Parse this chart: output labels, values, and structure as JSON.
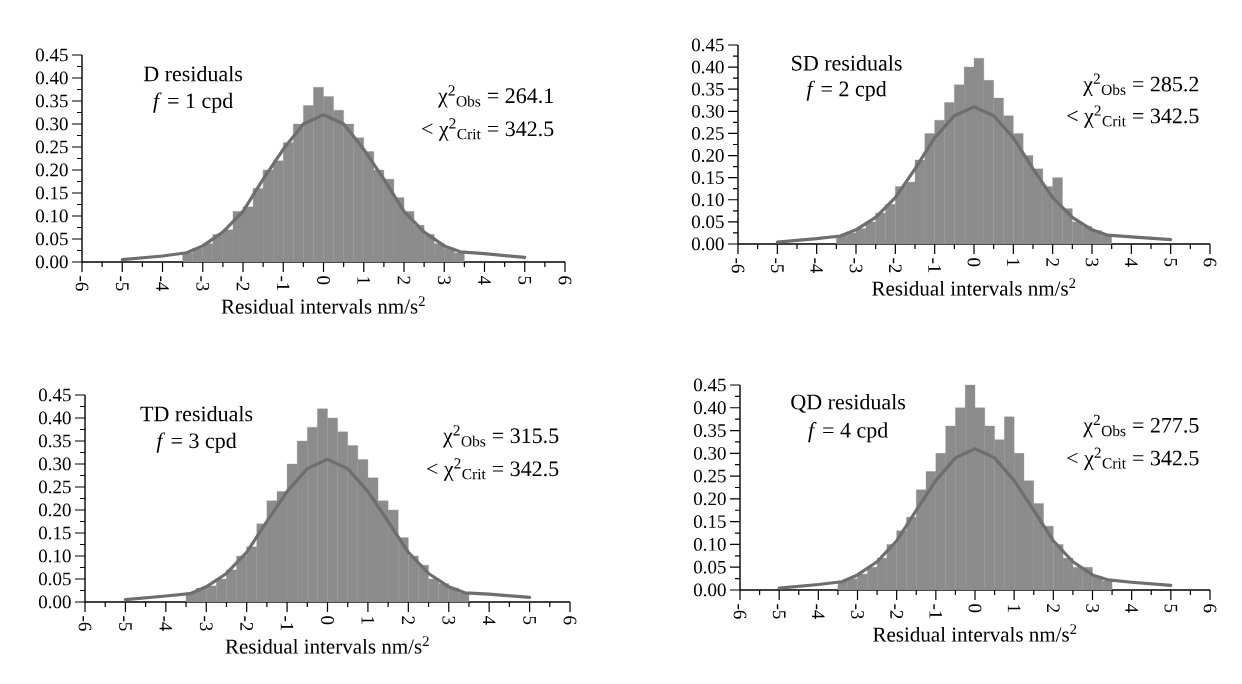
{
  "chart_data": [
    {
      "type": "histogram",
      "xlabel": "Residual intervals nm/s$^{2}$",
      "annotations": [
        "D residuals",
        "*f* = 1 cpd",
        "χ$^{2}$$_{Obs}$ = 264.1",
        "< χ$^{2}$$_{Crit}$ = 342.5"
      ],
      "xlim": [
        -6,
        6
      ],
      "ylim": [
        0,
        0.45
      ],
      "xticks": [
        -6,
        -5,
        -4,
        -3,
        -2,
        -1,
        0,
        1,
        2,
        3,
        4,
        5,
        6
      ],
      "yticks": [
        {
          "value": 0,
          "label": "0.00"
        },
        {
          "value": 0.05,
          "label": "0.05"
        },
        {
          "value": 0.1,
          "label": "0.10"
        },
        {
          "value": 0.15,
          "label": "0.15"
        },
        {
          "value": 0.2,
          "label": "0.20"
        },
        {
          "value": 0.25,
          "label": "0.25"
        },
        {
          "value": 0.3,
          "label": "0.30"
        },
        {
          "value": 0.35,
          "label": "0.35"
        },
        {
          "value": 0.4,
          "label": "0.40"
        },
        {
          "value": 0.45,
          "label": "0.45"
        }
      ],
      "grid": false,
      "series": [
        {
          "color": "#8c8c8c",
          "bins": [
            -3.5,
            -3.25,
            -3.0,
            -2.75,
            -2.5,
            -2.25,
            -2.0,
            -1.75,
            -1.5,
            -1.25,
            -1.0,
            -0.75,
            -0.5,
            -0.25,
            0.0,
            0.25,
            0.5,
            0.75,
            1.0,
            1.25,
            1.5,
            1.75,
            2.0,
            2.25,
            2.5,
            2.75,
            3.0,
            3.25,
            3.5
          ],
          "values": [
            0.02,
            0.03,
            0.04,
            0.06,
            0.07,
            0.11,
            0.12,
            0.16,
            0.2,
            0.22,
            0.26,
            0.3,
            0.34,
            0.38,
            0.36,
            0.33,
            0.3,
            0.27,
            0.24,
            0.2,
            0.18,
            0.14,
            0.11,
            0.08,
            0.06,
            0.04,
            0.03,
            0.02
          ]
        },
        {
          "type": "line",
          "color": "#6e6e6e",
          "marker": "none",
          "x": [
            -5,
            -4,
            -3.4,
            -3,
            -2.5,
            -2,
            -1.5,
            -1,
            -0.5,
            0,
            0.5,
            1,
            1.5,
            2,
            2.5,
            3,
            3.4,
            4,
            5
          ],
          "values": [
            0.005,
            0.013,
            0.02,
            0.035,
            0.065,
            0.11,
            0.18,
            0.245,
            0.3,
            0.32,
            0.3,
            0.245,
            0.18,
            0.11,
            0.065,
            0.035,
            0.022,
            0.018,
            0.01
          ]
        }
      ]
    },
    {
      "type": "histogram",
      "xlabel": "Residual intervals nm/s$^{2}$",
      "annotations": [
        "SD residuals",
        "*f* = 2 cpd",
        "χ$^{2}$$_{Obs}$ = 285.2",
        "< χ$^{2}$$_{Crit}$ = 342.5"
      ],
      "xlim": [
        -6,
        6
      ],
      "ylim": [
        0,
        0.45
      ],
      "xticks": [
        -6,
        -5,
        -4,
        -3,
        -2,
        -1,
        0,
        1,
        2,
        3,
        4,
        5,
        6
      ],
      "yticks": [
        {
          "value": 0,
          "label": "0.00"
        },
        {
          "value": 0.05,
          "label": "0.05"
        },
        {
          "value": 0.1,
          "label": "0.10"
        },
        {
          "value": 0.15,
          "label": "0.15"
        },
        {
          "value": 0.2,
          "label": "0.20"
        },
        {
          "value": 0.25,
          "label": "0.25"
        },
        {
          "value": 0.3,
          "label": "0.30"
        },
        {
          "value": 0.35,
          "label": "0.35"
        },
        {
          "value": 0.4,
          "label": "0.40"
        },
        {
          "value": 0.45,
          "label": "0.45"
        }
      ],
      "grid": false,
      "series": [
        {
          "color": "#8c8c8c",
          "bins": [
            -3.5,
            -3.25,
            -3.0,
            -2.75,
            -2.5,
            -2.25,
            -2.0,
            -1.75,
            -1.5,
            -1.25,
            -1.0,
            -0.75,
            -0.5,
            -0.25,
            0.0,
            0.25,
            0.5,
            0.75,
            1.0,
            1.25,
            1.5,
            1.75,
            2.0,
            2.25,
            2.5,
            2.75,
            3.0,
            3.25,
            3.5
          ],
          "values": [
            0.02,
            0.025,
            0.035,
            0.05,
            0.07,
            0.09,
            0.13,
            0.14,
            0.19,
            0.25,
            0.28,
            0.32,
            0.36,
            0.4,
            0.42,
            0.37,
            0.33,
            0.29,
            0.25,
            0.2,
            0.17,
            0.13,
            0.15,
            0.08,
            0.05,
            0.04,
            0.03,
            0.02
          ]
        },
        {
          "type": "line",
          "color": "#6e6e6e",
          "marker": "none",
          "x": [
            -5,
            -4,
            -3.4,
            -3,
            -2.5,
            -2,
            -1.5,
            -1,
            -0.5,
            0,
            0.5,
            1,
            1.5,
            2,
            2.5,
            3,
            3.4,
            4,
            5
          ],
          "values": [
            0.004,
            0.012,
            0.018,
            0.032,
            0.06,
            0.105,
            0.17,
            0.24,
            0.29,
            0.31,
            0.29,
            0.24,
            0.17,
            0.105,
            0.06,
            0.032,
            0.02,
            0.016,
            0.01
          ]
        }
      ]
    },
    {
      "type": "histogram",
      "xlabel": "Residual intervals nm/s$^{2}$",
      "annotations": [
        "TD residuals",
        "*f* = 3 cpd",
        "χ$^{2}$$_{Obs}$ = 315.5",
        "< χ$^{2}$$_{Crit}$ = 342.5"
      ],
      "xlim": [
        -6,
        6
      ],
      "ylim": [
        0,
        0.45
      ],
      "xticks": [
        -6,
        -5,
        -4,
        -3,
        -2,
        -1,
        0,
        1,
        2,
        3,
        4,
        5,
        6
      ],
      "yticks": [
        {
          "value": 0,
          "label": "0.00"
        },
        {
          "value": 0.05,
          "label": "0.05"
        },
        {
          "value": 0.1,
          "label": "0.10"
        },
        {
          "value": 0.15,
          "label": "0.15"
        },
        {
          "value": 0.2,
          "label": "0.20"
        },
        {
          "value": 0.25,
          "label": "0.25"
        },
        {
          "value": 0.3,
          "label": "0.30"
        },
        {
          "value": 0.35,
          "label": "0.35"
        },
        {
          "value": 0.4,
          "label": "0.40"
        },
        {
          "value": 0.45,
          "label": "0.45"
        }
      ],
      "grid": false,
      "series": [
        {
          "color": "#8c8c8c",
          "bins": [
            -3.5,
            -3.25,
            -3.0,
            -2.75,
            -2.5,
            -2.25,
            -2.0,
            -1.75,
            -1.5,
            -1.25,
            -1.0,
            -0.75,
            -0.5,
            -0.25,
            0.0,
            0.25,
            0.5,
            0.75,
            1.0,
            1.25,
            1.5,
            1.75,
            2.0,
            2.25,
            2.5,
            2.75,
            3.0,
            3.25,
            3.5
          ],
          "values": [
            0.02,
            0.03,
            0.035,
            0.05,
            0.07,
            0.1,
            0.12,
            0.17,
            0.22,
            0.24,
            0.3,
            0.35,
            0.38,
            0.42,
            0.4,
            0.37,
            0.34,
            0.31,
            0.27,
            0.22,
            0.2,
            0.14,
            0.1,
            0.08,
            0.05,
            0.04,
            0.03,
            0.02
          ]
        },
        {
          "type": "line",
          "color": "#6e6e6e",
          "marker": "none",
          "x": [
            -5,
            -4,
            -3.4,
            -3,
            -2.5,
            -2,
            -1.5,
            -1,
            -0.5,
            0,
            0.5,
            1,
            1.5,
            2,
            2.5,
            3,
            3.4,
            4,
            5
          ],
          "values": [
            0.005,
            0.013,
            0.018,
            0.033,
            0.062,
            0.108,
            0.175,
            0.24,
            0.29,
            0.31,
            0.29,
            0.24,
            0.175,
            0.108,
            0.062,
            0.033,
            0.02,
            0.017,
            0.01
          ]
        }
      ]
    },
    {
      "type": "histogram",
      "xlabel": "Residual intervals nm/s$^{2}$",
      "annotations": [
        "QD residuals",
        "*f* = 4 cpd",
        "χ$^{2}$$_{Obs}$ = 277.5",
        "< χ$^{2}$$_{Crit}$ = 342.5"
      ],
      "xlim": [
        -6,
        6
      ],
      "ylim": [
        0,
        0.45
      ],
      "xticks": [
        -6,
        -5,
        -4,
        -3,
        -2,
        -1,
        0,
        1,
        2,
        3,
        4,
        5,
        6
      ],
      "yticks": [
        {
          "value": 0,
          "label": "0.00"
        },
        {
          "value": 0.05,
          "label": "0.05"
        },
        {
          "value": 0.1,
          "label": "0.10"
        },
        {
          "value": 0.15,
          "label": "0.15"
        },
        {
          "value": 0.2,
          "label": "0.20"
        },
        {
          "value": 0.25,
          "label": "0.25"
        },
        {
          "value": 0.3,
          "label": "0.30"
        },
        {
          "value": 0.35,
          "label": "0.35"
        },
        {
          "value": 0.4,
          "label": "0.40"
        },
        {
          "value": 0.45,
          "label": "0.45"
        }
      ],
      "grid": false,
      "series": [
        {
          "color": "#8c8c8c",
          "bins": [
            -3.5,
            -3.25,
            -3.0,
            -2.75,
            -2.5,
            -2.25,
            -2.0,
            -1.75,
            -1.5,
            -1.25,
            -1.0,
            -0.75,
            -0.5,
            -0.25,
            0.0,
            0.25,
            0.5,
            0.75,
            1.0,
            1.25,
            1.5,
            1.75,
            2.0,
            2.25,
            2.5,
            2.75,
            3.0,
            3.25,
            3.5
          ],
          "values": [
            0.02,
            0.025,
            0.035,
            0.05,
            0.07,
            0.1,
            0.13,
            0.16,
            0.22,
            0.26,
            0.3,
            0.36,
            0.4,
            0.45,
            0.4,
            0.36,
            0.33,
            0.38,
            0.3,
            0.24,
            0.19,
            0.14,
            0.1,
            0.07,
            0.05,
            0.05,
            0.03,
            0.02
          ]
        },
        {
          "type": "line",
          "color": "#6e6e6e",
          "marker": "none",
          "x": [
            -5,
            -4,
            -3.4,
            -3,
            -2.5,
            -2,
            -1.5,
            -1,
            -0.5,
            0,
            0.5,
            1,
            1.5,
            2,
            2.5,
            3,
            3.4,
            4,
            5
          ],
          "values": [
            0.004,
            0.012,
            0.018,
            0.033,
            0.062,
            0.108,
            0.175,
            0.24,
            0.29,
            0.31,
            0.29,
            0.24,
            0.175,
            0.108,
            0.062,
            0.033,
            0.022,
            0.017,
            0.01
          ]
        }
      ]
    }
  ]
}
